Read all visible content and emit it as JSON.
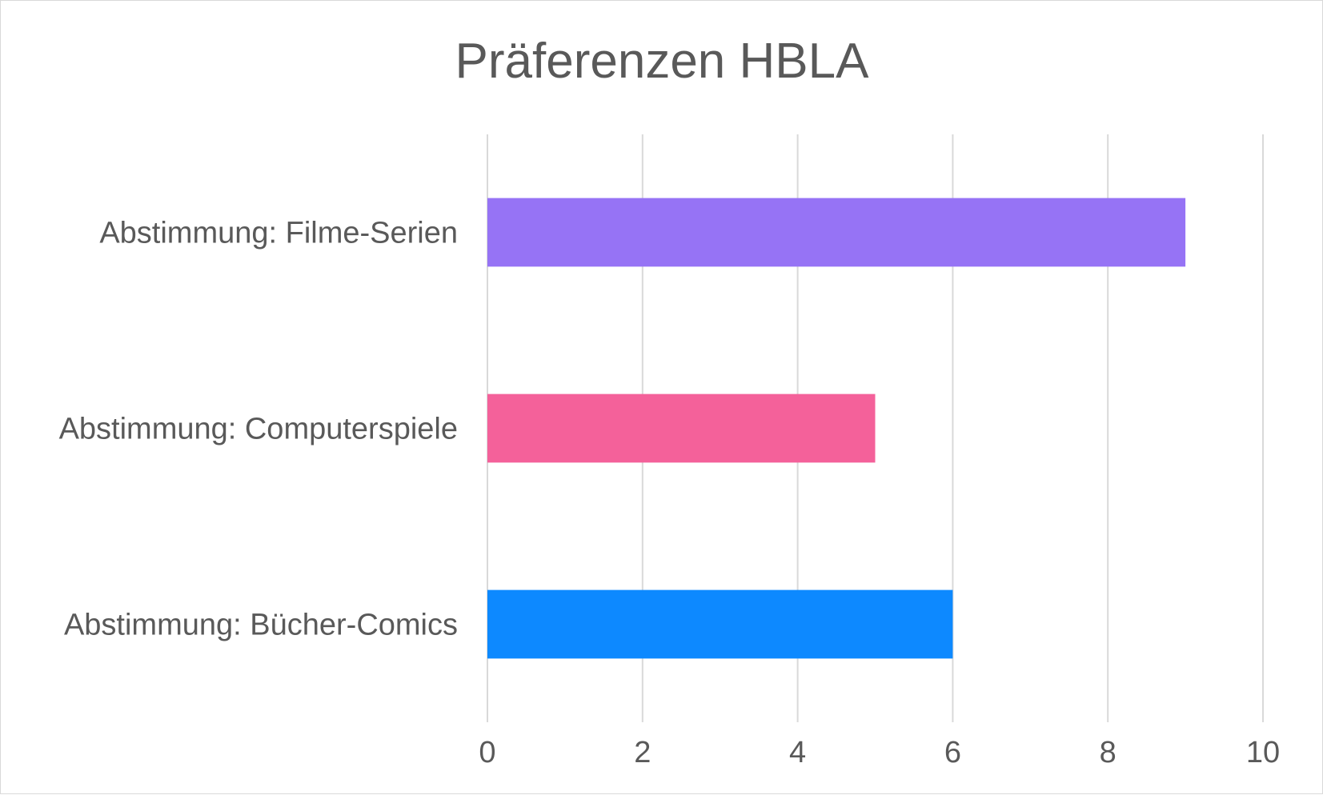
{
  "chart_data": {
    "type": "bar",
    "orientation": "horizontal",
    "title": "Präferenzen HBLA",
    "categories": [
      "Abstimmung: Filme-Serien",
      "Abstimmung: Computerspiele",
      "Abstimmung: Bücher-Comics"
    ],
    "values": [
      9,
      5,
      6
    ],
    "colors": [
      "#9673f5",
      "#f4619a",
      "#0d89ff"
    ],
    "xlim": [
      0,
      10
    ],
    "xticks": [
      "0",
      "2",
      "4",
      "6",
      "8",
      "10"
    ],
    "xlabel": "",
    "ylabel": "",
    "grid": "vertical",
    "legend": "none"
  }
}
